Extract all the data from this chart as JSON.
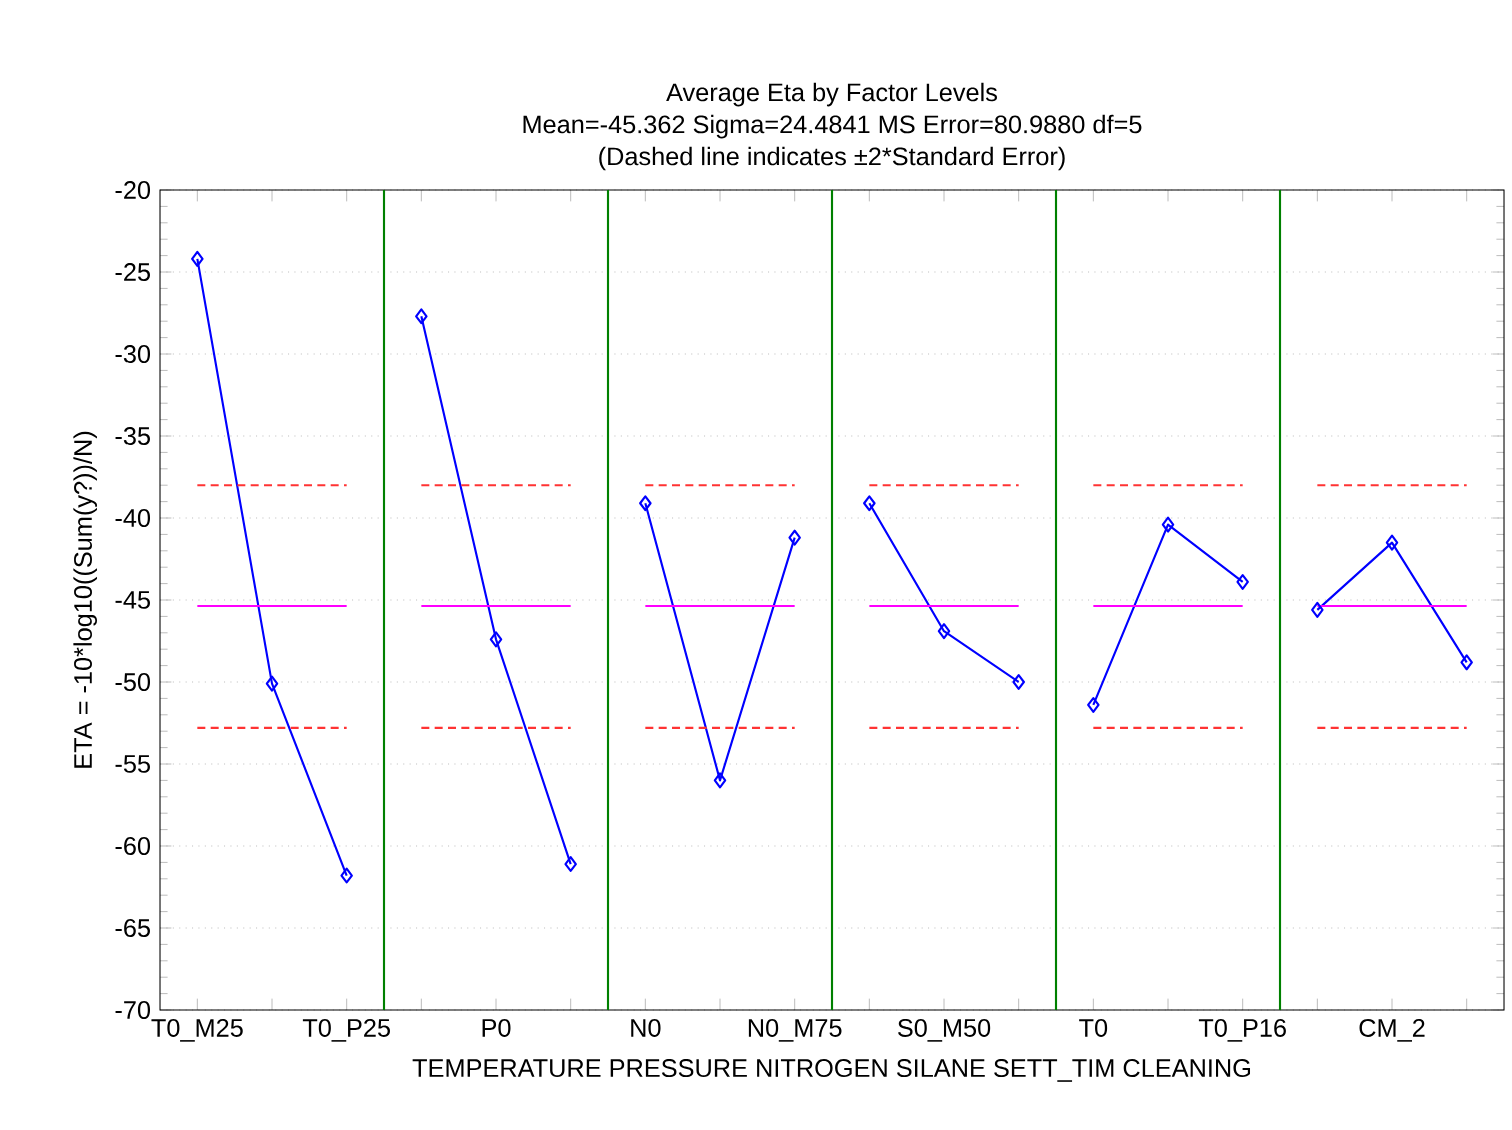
{
  "chart_data": {
    "type": "line",
    "title": "Average Eta by Factor Levels",
    "subtitle": "Mean=-45.362   Sigma=24.4841   MS Error=80.9880   df=5",
    "annotations": [
      "(Dashed line indicates ±2*Standard Error)"
    ],
    "xlabel": "TEMPERATURE   PRESSURE   NITROGEN   SILANE   SETT_TIM   CLEANING",
    "ylabel": "ETA = -10*log10((Sum(y?))/N)",
    "categories": [
      "T0_M25",
      null,
      "T0_P25",
      null,
      "P0",
      null,
      "N0",
      null,
      "N0_M75",
      null,
      "S0_M50",
      null,
      "T0",
      null,
      "T0_P16",
      null,
      "CM_2",
      null
    ],
    "series": [
      {
        "color": "#0000ff",
        "values": [
          -24.2,
          -50.1,
          -61.8,
          null,
          null,
          null,
          null,
          null,
          null,
          null,
          null,
          null,
          null,
          null,
          null,
          null,
          null,
          null
        ]
      },
      {
        "color": "#0000ff",
        "values": [
          null,
          null,
          null,
          -27.7,
          -47.4,
          -61.1,
          null,
          null,
          null,
          null,
          null,
          null,
          null,
          null,
          null,
          null,
          null,
          null
        ]
      },
      {
        "color": "#0000ff",
        "values": [
          null,
          null,
          null,
          null,
          null,
          null,
          -39.1,
          -56.0,
          -41.2,
          null,
          null,
          null,
          null,
          null,
          null,
          null,
          null,
          null
        ]
      },
      {
        "color": "#0000ff",
        "values": [
          null,
          null,
          null,
          null,
          null,
          null,
          null,
          null,
          null,
          -39.1,
          -46.9,
          -50.0,
          null,
          null,
          null,
          null,
          null,
          null
        ]
      },
      {
        "color": "#0000ff",
        "values": [
          null,
          null,
          null,
          null,
          null,
          null,
          null,
          null,
          null,
          null,
          null,
          null,
          -51.4,
          -40.4,
          -43.9,
          null,
          null,
          null
        ]
      },
      {
        "color": "#0000ff",
        "values": [
          null,
          null,
          null,
          null,
          null,
          null,
          null,
          null,
          null,
          null,
          null,
          null,
          null,
          null,
          null,
          -45.6,
          -41.5,
          -48.8
        ]
      }
    ],
    "ylim": [
      -70,
      -20
    ],
    "yticks": [
      -70,
      -65,
      -60,
      -55,
      -50,
      -45,
      -40,
      -35,
      -30,
      -25,
      -20
    ],
    "grid": "y",
    "marker": "diamond",
    "line_style": "solid",
    "ref_lines": [
      {
        "axis": "y",
        "value": -45.362,
        "color": "#ff00ff",
        "line_style": "solid"
      },
      {
        "axis": "y",
        "value": -38.0,
        "color": "#ff3333",
        "line_style": "dashed"
      },
      {
        "axis": "y",
        "value": -52.8,
        "color": "#ff3333",
        "line_style": "dashed"
      }
    ]
  }
}
